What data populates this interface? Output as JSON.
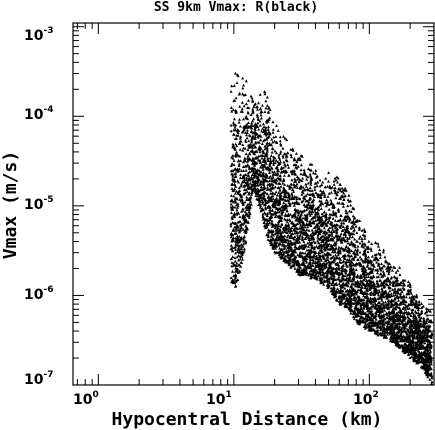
{
  "chart_data": {
    "type": "scatter",
    "title": "SS 9km Vmax: R(black)",
    "xlabel": "Hypocentral Distance (km)",
    "ylabel": "Vmax (m/s)",
    "xscale": "log",
    "yscale": "log",
    "xlim": [
      0.65,
      300
    ],
    "ylim": [
      1e-07,
      0.0011
    ],
    "grid": false,
    "marker": "triangle",
    "marker_color": "#000000",
    "xticks": [
      {
        "value": 1,
        "base": "10",
        "exp": "0"
      },
      {
        "value": 10,
        "base": "10",
        "exp": "1"
      },
      {
        "value": 100,
        "base": "10",
        "exp": "2"
      }
    ],
    "yticks": [
      {
        "value": 1e-07,
        "base": "10",
        "exp": "-7"
      },
      {
        "value": 1e-06,
        "base": "10",
        "exp": "-6"
      },
      {
        "value": 1e-05,
        "base": "10",
        "exp": "-5"
      },
      {
        "value": 0.0001,
        "base": "10",
        "exp": "-4"
      },
      {
        "value": 0.001,
        "base": "10",
        "exp": "-3"
      }
    ],
    "upper_envelope": [
      [
        9.5,
        0.00035
      ],
      [
        10,
        0.00037
      ],
      [
        12,
        0.0003
      ],
      [
        14,
        0.00015
      ],
      [
        16,
        0.00025
      ],
      [
        18,
        0.0002
      ],
      [
        20,
        9e-05
      ],
      [
        25,
        6e-05
      ],
      [
        30,
        4e-05
      ],
      [
        40,
        3e-05
      ],
      [
        50,
        2.5e-05
      ],
      [
        63,
        2.3e-05
      ],
      [
        70,
        1.5e-05
      ],
      [
        80,
        8e-06
      ],
      [
        100,
        5e-06
      ],
      [
        150,
        2.5e-06
      ],
      [
        200,
        1.5e-06
      ],
      [
        250,
        8e-07
      ],
      [
        290,
        7e-07
      ]
    ],
    "lower_envelope": [
      [
        9.5,
        1.5e-06
      ],
      [
        10,
        1e-06
      ],
      [
        12,
        3e-06
      ],
      [
        14,
        1.5e-05
      ],
      [
        16,
        8e-06
      ],
      [
        18,
        4e-06
      ],
      [
        20,
        3e-06
      ],
      [
        25,
        2.2e-06
      ],
      [
        30,
        1.7e-06
      ],
      [
        40,
        1.5e-06
      ],
      [
        50,
        1.2e-06
      ],
      [
        60,
        8e-07
      ],
      [
        70,
        7e-07
      ],
      [
        80,
        5e-07
      ],
      [
        100,
        4e-07
      ],
      [
        150,
        3e-07
      ],
      [
        200,
        2e-07
      ],
      [
        250,
        1.5e-07
      ],
      [
        290,
        1e-07
      ]
    ],
    "point_count": 5200
  }
}
